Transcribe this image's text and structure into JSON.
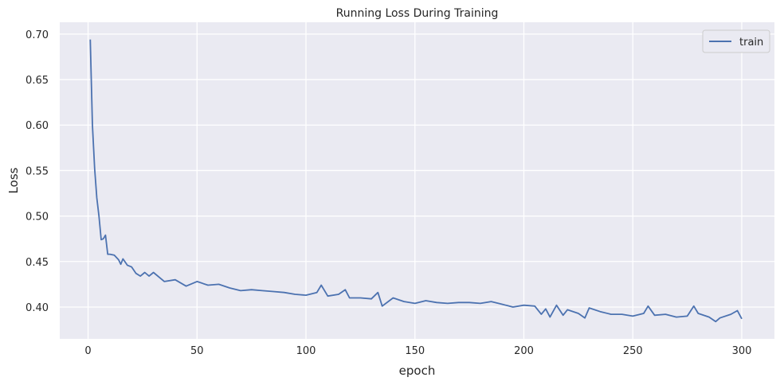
{
  "chart_data": {
    "type": "line",
    "title": "Running Loss During Training",
    "xlabel": "epoch",
    "ylabel": "Loss",
    "xlim": [
      -13,
      315
    ],
    "ylim": [
      0.365,
      0.713
    ],
    "x_ticks": [
      0,
      50,
      100,
      150,
      200,
      250,
      300
    ],
    "y_ticks": [
      0.4,
      0.45,
      0.5,
      0.55,
      0.6,
      0.65,
      0.7
    ],
    "y_tick_labels": [
      "0.40",
      "0.45",
      "0.50",
      "0.55",
      "0.60",
      "0.65",
      "0.70"
    ],
    "grid": true,
    "legend_position": "top-right",
    "series": [
      {
        "name": "train",
        "color": "#4c72b0",
        "x": [
          1,
          2,
          3,
          4,
          5,
          6,
          7,
          8,
          9,
          10,
          12,
          14,
          15,
          16,
          18,
          20,
          22,
          24,
          26,
          28,
          30,
          35,
          40,
          45,
          50,
          55,
          60,
          65,
          70,
          75,
          80,
          85,
          90,
          95,
          100,
          105,
          107,
          110,
          115,
          118,
          120,
          125,
          130,
          133,
          135,
          140,
          145,
          150,
          155,
          160,
          165,
          170,
          175,
          180,
          185,
          190,
          195,
          200,
          205,
          208,
          210,
          212,
          215,
          218,
          220,
          225,
          228,
          230,
          235,
          240,
          245,
          250,
          255,
          257,
          260,
          265,
          270,
          275,
          278,
          280,
          285,
          288,
          290,
          295,
          298,
          300
        ],
        "values": [
          0.694,
          0.6,
          0.552,
          0.52,
          0.5,
          0.474,
          0.475,
          0.479,
          0.458,
          0.458,
          0.457,
          0.452,
          0.447,
          0.453,
          0.446,
          0.444,
          0.437,
          0.434,
          0.438,
          0.434,
          0.438,
          0.428,
          0.43,
          0.423,
          0.428,
          0.424,
          0.425,
          0.421,
          0.418,
          0.419,
          0.418,
          0.417,
          0.416,
          0.414,
          0.413,
          0.416,
          0.424,
          0.412,
          0.414,
          0.419,
          0.41,
          0.41,
          0.409,
          0.416,
          0.401,
          0.41,
          0.406,
          0.404,
          0.407,
          0.405,
          0.404,
          0.405,
          0.405,
          0.404,
          0.406,
          0.403,
          0.4,
          0.402,
          0.401,
          0.392,
          0.398,
          0.389,
          0.402,
          0.391,
          0.397,
          0.393,
          0.388,
          0.399,
          0.395,
          0.392,
          0.392,
          0.39,
          0.393,
          0.401,
          0.391,
          0.392,
          0.389,
          0.39,
          0.401,
          0.393,
          0.389,
          0.384,
          0.388,
          0.392,
          0.396,
          0.387
        ]
      }
    ]
  }
}
